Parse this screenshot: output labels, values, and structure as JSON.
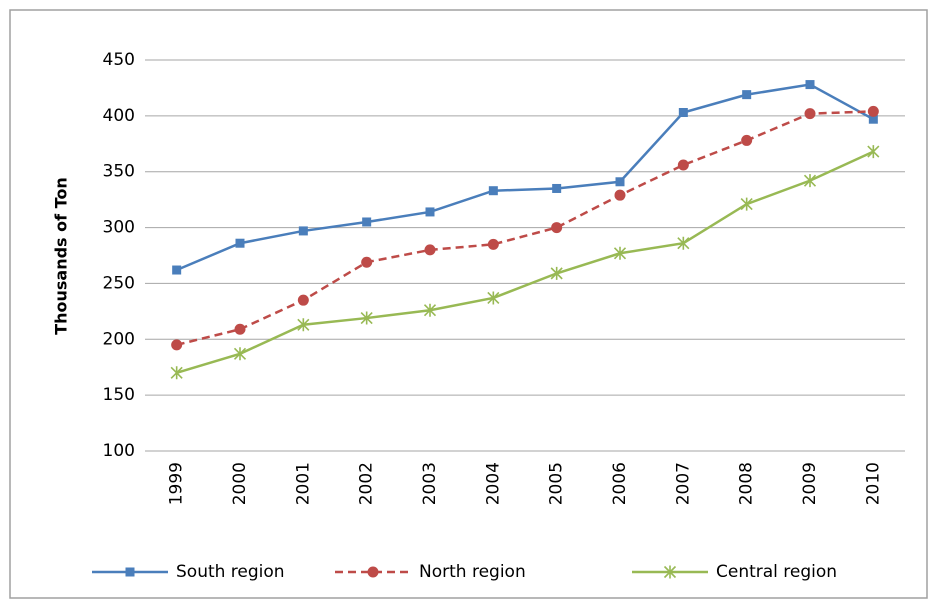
{
  "chart_data": {
    "type": "line",
    "y_label": "Thousands  of Ton",
    "categories": [
      "1999",
      "2000",
      "2001",
      "2002",
      "2003",
      "2004",
      "2005",
      "2006",
      "2007",
      "2008",
      "2009",
      "2010"
    ],
    "series": [
      {
        "name": "South region",
        "color": "#4a7ebb",
        "linestyle": "solid",
        "marker": "square",
        "values": [
          262,
          286,
          297,
          305,
          314,
          333,
          335,
          341,
          403,
          419,
          428,
          397
        ]
      },
      {
        "name": "North region",
        "color": "#be4b48",
        "linestyle": "dashed",
        "marker": "circle",
        "values": [
          195,
          209,
          235,
          269,
          280,
          285,
          300,
          329,
          356,
          378,
          402,
          404
        ]
      },
      {
        "name": "Central region",
        "color": "#98b954",
        "linestyle": "solid",
        "marker": "star",
        "values": [
          170,
          187,
          213,
          219,
          226,
          237,
          259,
          277,
          286,
          321,
          342,
          368
        ]
      }
    ],
    "ylim": [
      100,
      450
    ],
    "yticks": [
      100,
      150,
      200,
      250,
      300,
      350,
      400,
      450
    ],
    "grid": true,
    "legend": "bottom"
  }
}
